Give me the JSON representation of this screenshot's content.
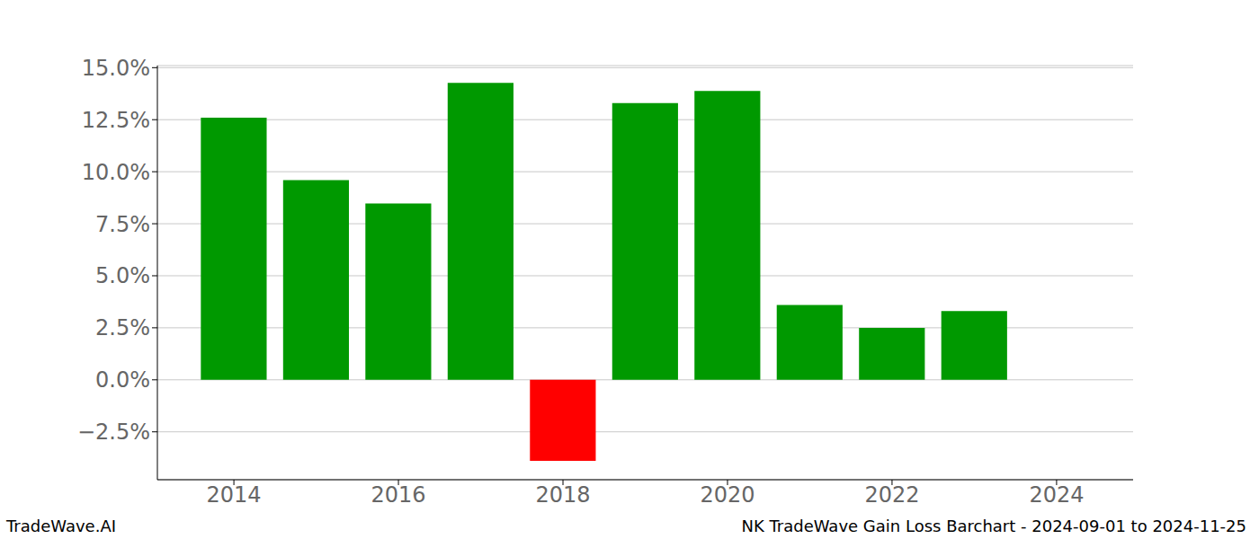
{
  "chart_data": {
    "type": "bar",
    "x": [
      2014,
      2015,
      2016,
      2017,
      2018,
      2019,
      2020,
      2021,
      2022,
      2023
    ],
    "values": [
      12.6,
      9.6,
      8.47,
      14.27,
      -3.89,
      13.3,
      13.88,
      3.6,
      2.5,
      3.3
    ],
    "colors": [
      "#009900",
      "#009900",
      "#009900",
      "#009900",
      "#ff0000",
      "#009900",
      "#009900",
      "#009900",
      "#009900",
      "#009900"
    ],
    "xlim": [
      2013.07,
      2024.93
    ],
    "xticks": [
      2014,
      2016,
      2018,
      2020,
      2022,
      2024
    ],
    "ylim": [
      -4.8,
      15.1
    ],
    "yticks": [
      {
        "value": -2.5,
        "label": "−2.5%"
      },
      {
        "value": 0,
        "label": "0.0%"
      },
      {
        "value": 2.5,
        "label": "2.5%"
      },
      {
        "value": 5,
        "label": "5.0%"
      },
      {
        "value": 7.5,
        "label": "7.5%"
      },
      {
        "value": 10,
        "label": "10.0%"
      },
      {
        "value": 12.5,
        "label": "12.5%"
      },
      {
        "value": 15,
        "label": "15.0%"
      }
    ],
    "grid": true,
    "annotations": [
      "TradeWave.AI",
      "NK TradeWave Gain Loss Barchart - 2024-09-01 to 2024-11-25"
    ]
  }
}
